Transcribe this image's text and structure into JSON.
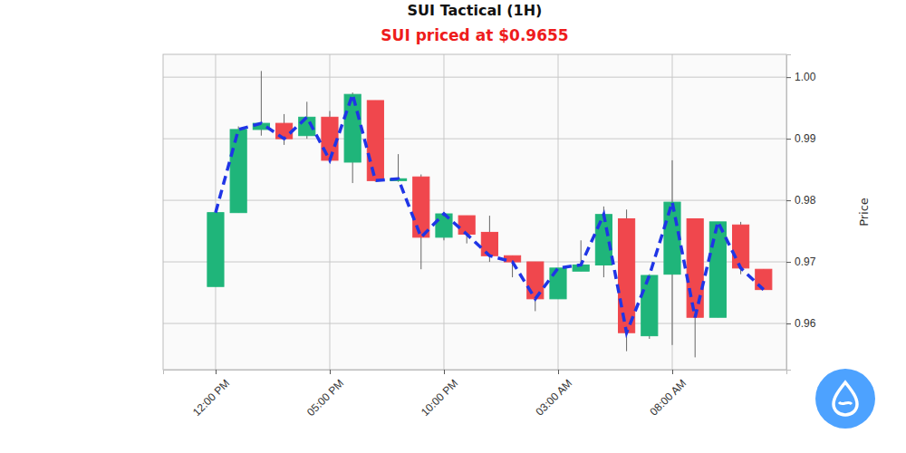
{
  "chart_data": {
    "type": "candlestick",
    "title": "SUI Tactical (1H)",
    "subtitle": "SUI priced at $0.9655",
    "y_label": "Price",
    "x": [
      0,
      1,
      2,
      3,
      4,
      5,
      6,
      7,
      8,
      9,
      10,
      11,
      12,
      13,
      14,
      15,
      16,
      17,
      18,
      19,
      20,
      21,
      22,
      23,
      24
    ],
    "xlim": [
      -2.3,
      25
    ],
    "xticks": [
      {
        "value": 0,
        "label": "12:00 PM"
      },
      {
        "value": 5,
        "label": "05:00 PM"
      },
      {
        "value": 10,
        "label": "10:00 PM"
      },
      {
        "value": 15,
        "label": "03:00 AM"
      },
      {
        "value": 20,
        "label": "08:00 AM"
      }
    ],
    "ylim": [
      0.9525,
      1.0037
    ],
    "yticks": [
      0.96,
      0.97,
      0.98,
      0.99,
      {
        "value": 1,
        "label": "1.00"
      }
    ],
    "grid": true,
    "series": [
      {
        "type": "candlestick",
        "open": [
          0.966,
          0.978,
          0.9915,
          0.9925,
          0.9905,
          0.9935,
          0.9862,
          0.9962,
          0.9832,
          0.9838,
          0.974,
          0.9775,
          0.9748,
          0.971,
          0.97,
          0.964,
          0.9685,
          0.9695,
          0.977,
          0.958,
          0.968,
          0.977,
          0.961,
          0.976,
          0.9688
        ],
        "high": [
          0.978,
          0.992,
          1.001,
          0.994,
          0.996,
          0.9945,
          0.9975,
          0.9962,
          0.9875,
          0.9842,
          0.978,
          0.9775,
          0.9775,
          0.971,
          0.97,
          0.969,
          0.9735,
          0.979,
          0.9785,
          0.968,
          0.9865,
          0.977,
          0.9765,
          0.9765,
          0.9688
        ],
        "low": [
          0.966,
          0.978,
          0.9905,
          0.989,
          0.99,
          0.9865,
          0.9828,
          0.983,
          0.983,
          0.9688,
          0.9735,
          0.973,
          0.97,
          0.9675,
          0.962,
          0.964,
          0.9685,
          0.9675,
          0.9555,
          0.9575,
          0.9565,
          0.9545,
          0.961,
          0.968,
          0.9655
        ],
        "close": [
          0.978,
          0.9915,
          0.9925,
          0.99,
          0.9935,
          0.9865,
          0.9972,
          0.9832,
          0.9835,
          0.974,
          0.9778,
          0.9745,
          0.971,
          0.97,
          0.964,
          0.969,
          0.9695,
          0.9777,
          0.9585,
          0.9678,
          0.9797,
          0.961,
          0.9765,
          0.969,
          0.9655
        ],
        "colors": [
          "#1fb57a",
          "#1fb57a",
          "#1fb57a",
          "#f0474d",
          "#1fb57a",
          "#f0474d",
          "#1fb57a",
          "#f0474d",
          "#1fb57a",
          "#f0474d",
          "#1fb57a",
          "#f0474d",
          "#f0474d",
          "#f0474d",
          "#f0474d",
          "#1fb57a",
          "#1fb57a",
          "#1fb57a",
          "#f0474d",
          "#1fb57a",
          "#1fb57a",
          "#f0474d",
          "#1fb57a",
          "#f0474d",
          "#f0474d"
        ]
      },
      {
        "type": "line",
        "values": [
          0.978,
          0.9915,
          0.9925,
          0.99,
          0.9935,
          0.9865,
          0.9972,
          0.9832,
          0.9835,
          0.974,
          0.9778,
          0.9745,
          0.971,
          0.97,
          0.964,
          0.969,
          0.9695,
          0.9777,
          0.9585,
          0.9678,
          0.9797,
          0.961,
          0.9765,
          0.969,
          0.9655
        ],
        "color": "#1f35e6",
        "line_style": "dashed"
      }
    ]
  }
}
